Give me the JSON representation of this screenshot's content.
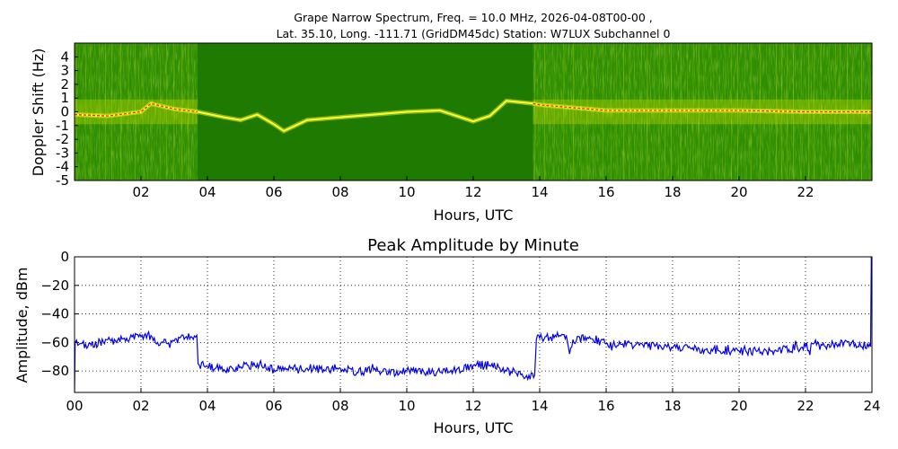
{
  "chart_data": [
    {
      "type": "heatmap",
      "title_line1": "Grape Narrow Spectrum, Freq. = 10.0 MHz, 2026-04-08T00-00 ,",
      "title_line2": "Lat.  35.10, Long. -111.71 (GridDM45dc) Station: W7LUX Subchannel 0",
      "xlabel": "Hours, UTC",
      "ylabel": "Doppler Shift (Hz)",
      "xlim": [
        0,
        24
      ],
      "ylim": [
        -5,
        5
      ],
      "x_ticks": [
        "02",
        "04",
        "06",
        "08",
        "10",
        "12",
        "14",
        "16",
        "18",
        "20",
        "22"
      ],
      "y_ticks": [
        "4",
        "3",
        "2",
        "1",
        "0",
        "-1",
        "-2",
        "-3",
        "-4",
        "-5"
      ],
      "colors": {
        "background": "#1e7a00",
        "signal": "#ffff33",
        "peak": "#ff2200"
      },
      "noisy_segments_hours": [
        [
          0,
          3.7
        ],
        [
          13.8,
          24
        ]
      ],
      "quiet_segment_hours": [
        3.7,
        13.8
      ],
      "carrier_trace": {
        "x": [
          0,
          1,
          2,
          2.3,
          3,
          3.7,
          4.5,
          5,
          5.5,
          6,
          6.3,
          7,
          8,
          9,
          10,
          11,
          12,
          12.5,
          13,
          13.8,
          14,
          15,
          16,
          18,
          20,
          22,
          24
        ],
        "y": [
          -0.2,
          -0.3,
          0,
          0.6,
          0.2,
          0,
          -0.4,
          -0.6,
          -0.2,
          -0.9,
          -1.4,
          -0.6,
          -0.4,
          -0.2,
          0,
          0.1,
          -0.7,
          -0.3,
          0.8,
          0.6,
          0.5,
          0.3,
          0.1,
          0.1,
          0.1,
          0,
          0
        ]
      }
    },
    {
      "type": "line",
      "title": "Peak Amplitude by Minute",
      "xlabel": "Hours, UTC",
      "ylabel": "Amplitude, dBm",
      "xlim": [
        0,
        24
      ],
      "ylim": [
        -95,
        0
      ],
      "grid": true,
      "line_color": "#0000ee",
      "x_ticks": [
        "00",
        "02",
        "04",
        "06",
        "08",
        "10",
        "12",
        "14",
        "16",
        "18",
        "20",
        "22",
        "24"
      ],
      "y_ticks": [
        "0",
        "−20",
        "−40",
        "−60",
        "−80"
      ],
      "y_tick_values": [
        0,
        -20,
        -40,
        -60,
        -80
      ],
      "series": [
        {
          "x": [
            0,
            0.02,
            0.1,
            0.5,
            1,
            1.5,
            2,
            2.2,
            2.5,
            3,
            3.5,
            3.68,
            3.72,
            4,
            4.5,
            5,
            5.5,
            6,
            6.5,
            7,
            7.5,
            8,
            8.5,
            9,
            9.5,
            10,
            10.5,
            11,
            11.5,
            12,
            12.5,
            13,
            13.5,
            13.85,
            13.9,
            14,
            14.5,
            14.8,
            14.9,
            15,
            15.5,
            16,
            16.5,
            17,
            18,
            19,
            20,
            21,
            22,
            22.5,
            23,
            23.5,
            23.9,
            23.96,
            23.98,
            24
          ],
          "y": [
            -95,
            -60,
            -62,
            -62,
            -58,
            -57,
            -56,
            -54,
            -60,
            -59,
            -56,
            -55,
            -75,
            -77,
            -79,
            -77,
            -75,
            -79,
            -78,
            -78,
            -79,
            -78,
            -81,
            -79,
            -82,
            -80,
            -80,
            -81,
            -79,
            -76,
            -76,
            -80,
            -84,
            -83,
            -58,
            -57,
            -56,
            -55,
            -68,
            -58,
            -56,
            -61,
            -61,
            -62,
            -64,
            -65,
            -66,
            -66,
            -63,
            -62,
            -61,
            -61,
            -63,
            -63,
            0,
            0
          ]
        }
      ]
    }
  ]
}
